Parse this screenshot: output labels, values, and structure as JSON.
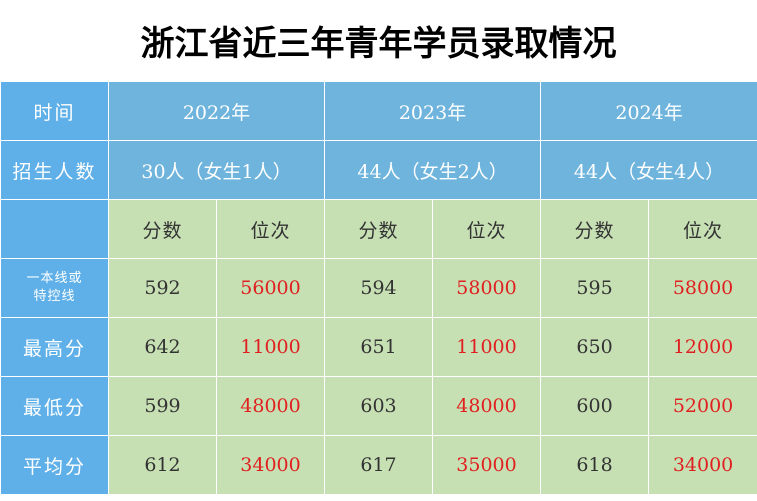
{
  "title": "浙江省近三年青年学员录取情况",
  "header": {
    "time_label": "时间",
    "years": [
      "2022年",
      "2023年",
      "2024年"
    ]
  },
  "recruit": {
    "label": "招生人数",
    "values": [
      "30人（女生1人）",
      "44人（女生2人）",
      "44人（女生4人）"
    ]
  },
  "subheaders": {
    "score": "分数",
    "rank": "位次"
  },
  "rows": [
    {
      "label_line1": "一本线或",
      "label_line2": "特控线",
      "cells": [
        "592",
        "56000",
        "594",
        "58000",
        "595",
        "58000"
      ]
    },
    {
      "label": "最高分",
      "cells": [
        "642",
        "11000",
        "651",
        "11000",
        "650",
        "12000"
      ]
    },
    {
      "label": "最低分",
      "cells": [
        "599",
        "48000",
        "603",
        "48000",
        "600",
        "52000"
      ]
    },
    {
      "label": "平均分",
      "cells": [
        "612",
        "34000",
        "617",
        "35000",
        "618",
        "34000"
      ]
    }
  ],
  "colors": {
    "label_bg": "#5fb0e8",
    "header_bg": "#6fb4dc",
    "cell_bg": "#c6dfb3",
    "rank_text": "#e02020"
  }
}
